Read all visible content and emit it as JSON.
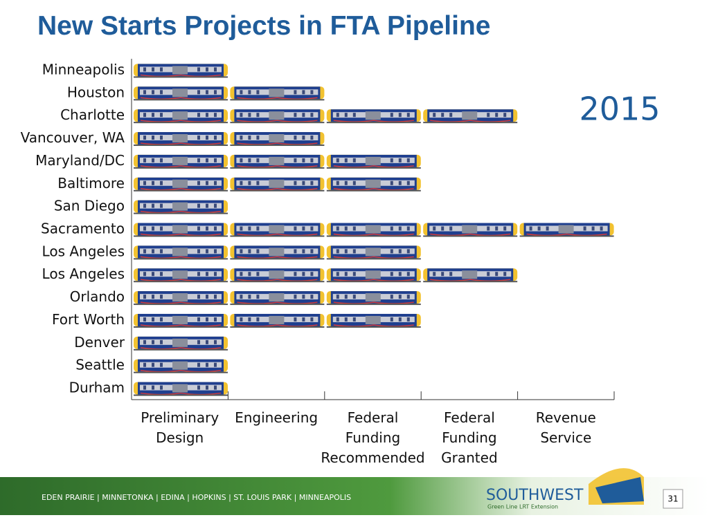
{
  "chart_data": {
    "type": "pictograph",
    "title": "New Starts Projects in FTA Pipeline",
    "annotation": "2015",
    "categories": [
      "Minneapolis",
      "Houston",
      "Charlotte",
      "Vancouver, WA",
      "Maryland/DC",
      "Baltimore",
      "San Diego",
      "Sacramento",
      "Los Angeles",
      "Los Angeles",
      "Orlando",
      "Fort Worth",
      "Denver",
      "Seattle",
      "Durham"
    ],
    "values": [
      1,
      2,
      4,
      2,
      3,
      3,
      1,
      5,
      3,
      4,
      3,
      3,
      1,
      1,
      1
    ],
    "stages": [
      "Preliminary Design",
      "Engineering",
      "Federal Funding Recommended",
      "Federal Funding Granted",
      "Revenue Service"
    ],
    "xlim": [
      0,
      5
    ],
    "xticks": [
      1,
      2,
      3,
      4,
      5
    ],
    "color": "#1f3f8f"
  },
  "footer": {
    "cities": "EDEN PRAIRIE | MINNETONKA | EDINA | HOPKINS | ST. LOUIS PARK | MINNEAPOLIS",
    "logo": "SOUTHWEST",
    "tagline": "Green Line LRT Extension",
    "page": "31"
  }
}
